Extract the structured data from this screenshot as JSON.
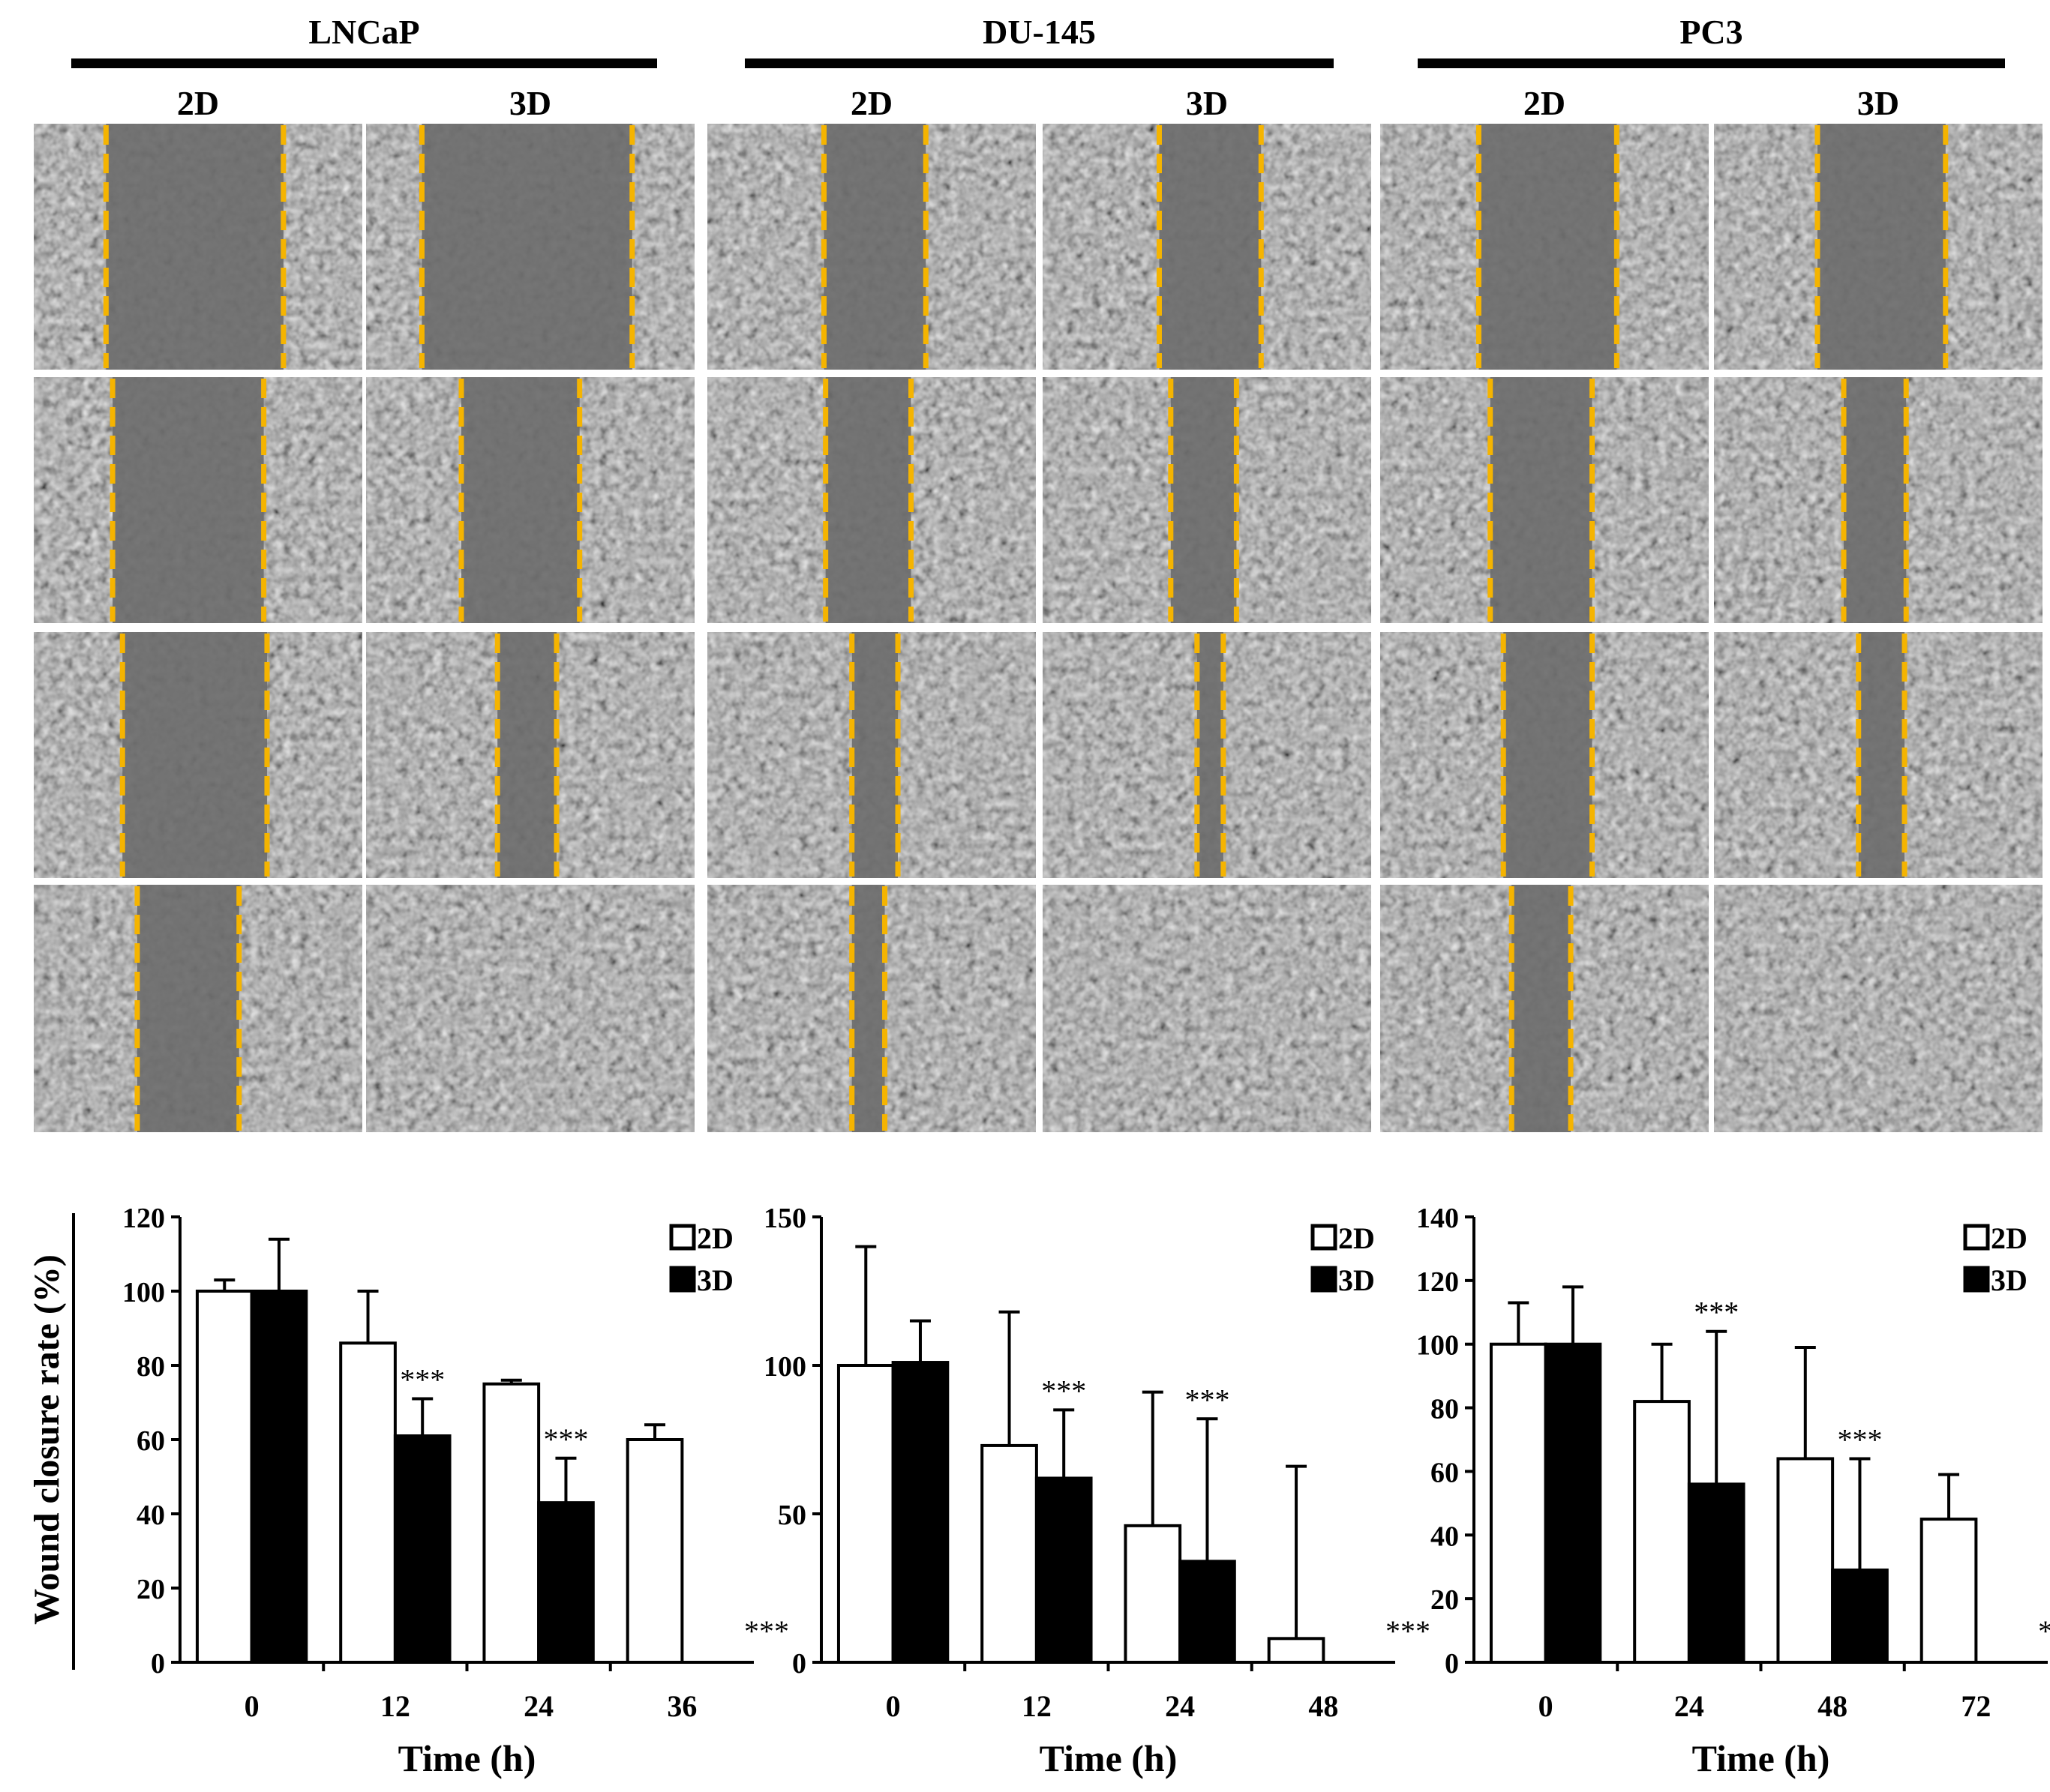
{
  "figure": {
    "cell_lines": [
      {
        "name": "LNCaP",
        "conditions": [
          "2D",
          "3D"
        ]
      },
      {
        "name": "DU-145",
        "conditions": [
          "2D",
          "3D"
        ]
      },
      {
        "name": "PC3",
        "conditions": [
          "2D",
          "3D"
        ]
      }
    ],
    "colors": {
      "scratch_line": "#f5b400",
      "bar_2d_fill": "#ffffff",
      "bar_3d_fill": "#000000",
      "micrograph_base": "#7a7a7a",
      "axis": "#000000"
    },
    "micrograph_rows": 4,
    "scratch_widths": {
      "LNCaP": {
        "2D": [
          0.54,
          0.46,
          0.44,
          0.31
        ],
        "3D": [
          0.64,
          0.36,
          0.18,
          0.0
        ]
      },
      "DU-145": {
        "2D": [
          0.31,
          0.26,
          0.14,
          0.1
        ],
        "3D": [
          0.31,
          0.2,
          0.08,
          0.0
        ]
      },
      "PC3": {
        "2D": [
          0.42,
          0.31,
          0.27,
          0.18
        ],
        "3D": [
          0.39,
          0.19,
          0.14,
          0.0
        ]
      }
    }
  },
  "chart_data": [
    {
      "type": "bar",
      "cell_line": "LNCaP",
      "categories": [
        "0",
        "12",
        "24",
        "36"
      ],
      "series": [
        {
          "name": "2D",
          "values": [
            100,
            86,
            75,
            60
          ],
          "errors": [
            3,
            14,
            1,
            4
          ]
        },
        {
          "name": "3D",
          "values": [
            100,
            61,
            43,
            0
          ],
          "errors": [
            14,
            10,
            12,
            0
          ]
        }
      ],
      "significance": [
        "",
        "***",
        "***",
        "***"
      ],
      "yticks": [
        0,
        20,
        40,
        60,
        80,
        100,
        120
      ],
      "ylim": [
        0,
        120
      ],
      "xlabel": "Time (h)",
      "ylabel": "Wound closure rate (%)",
      "legend_position": "top-right"
    },
    {
      "type": "bar",
      "cell_line": "DU-145",
      "categories": [
        "0",
        "12",
        "24",
        "48"
      ],
      "series": [
        {
          "name": "2D",
          "values": [
            100,
            73,
            46,
            8
          ],
          "errors": [
            40,
            45,
            45,
            58
          ]
        },
        {
          "name": "3D",
          "values": [
            101,
            62,
            34,
            0
          ],
          "errors": [
            14,
            23,
            48,
            0
          ]
        }
      ],
      "significance": [
        "",
        "***",
        "***",
        "***"
      ],
      "yticks": [
        0,
        50,
        100,
        150
      ],
      "ylim": [
        0,
        150
      ],
      "xlabel": "Time (h)",
      "ylabel": "",
      "legend_position": "top-right"
    },
    {
      "type": "bar",
      "cell_line": "PC3",
      "categories": [
        "0",
        "24",
        "48",
        "72"
      ],
      "series": [
        {
          "name": "2D",
          "values": [
            100,
            82,
            64,
            45
          ],
          "errors": [
            13,
            18,
            35,
            14
          ]
        },
        {
          "name": "3D",
          "values": [
            100,
            56,
            29,
            0
          ],
          "errors": [
            18,
            48,
            35,
            0
          ]
        }
      ],
      "significance": [
        "",
        "***",
        "***",
        "***"
      ],
      "yticks": [
        0,
        20,
        40,
        60,
        80,
        100,
        120,
        140
      ],
      "ylim": [
        0,
        140
      ],
      "xlabel": "Time (h)",
      "ylabel": "",
      "legend_position": "top-right"
    }
  ]
}
